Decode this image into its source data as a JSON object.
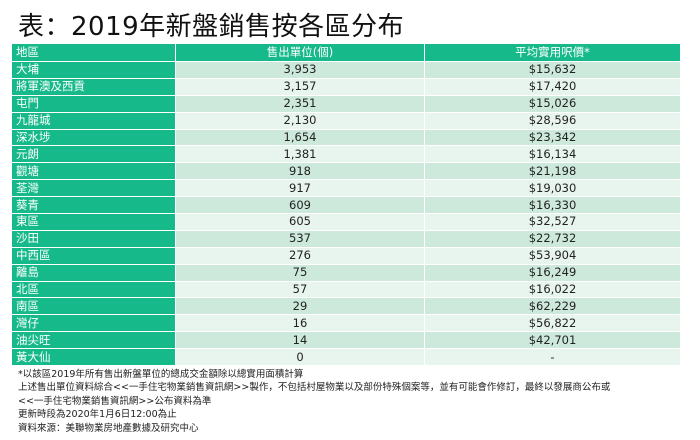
{
  "title": "表：2019年新盤銷售按各區分布",
  "table": {
    "headers": [
      "地區",
      "售出單位(個)",
      "平均實用呎價*"
    ],
    "rows": [
      [
        "大埔",
        "3,953",
        "$15,632"
      ],
      [
        "將軍澳及西貢",
        "3,157",
        "$17,420"
      ],
      [
        "屯門",
        "2,351",
        "$15,026"
      ],
      [
        "九龍城",
        "2,130",
        "$28,596"
      ],
      [
        "深水埗",
        "1,654",
        "$23,342"
      ],
      [
        "元朗",
        "1,381",
        "$16,134"
      ],
      [
        "觀塘",
        "918",
        "$21,198"
      ],
      [
        "荃灣",
        "917",
        "$19,030"
      ],
      [
        "葵青",
        "609",
        "$16,330"
      ],
      [
        "東區",
        "605",
        "$32,527"
      ],
      [
        "沙田",
        "537",
        "$22,732"
      ],
      [
        "中西區",
        "276",
        "$53,904"
      ],
      [
        "離島",
        "75",
        "$16,249"
      ],
      [
        "北區",
        "57",
        "$16,022"
      ],
      [
        "南區",
        "29",
        "$62,229"
      ],
      [
        "灣仔",
        "16",
        "$56,822"
      ],
      [
        "油尖旺",
        "14",
        "$42,701"
      ],
      [
        "黃大仙",
        "0",
        "-"
      ]
    ]
  },
  "notes": [
    "*以該區2019年所有售出新盤單位的總成交金額除以總實用面積計算",
    "上述售出單位資料綜合<<一手住宅物業銷售資訊網>>製作，不包括村屋物業以及部份特殊個案等，並有可能會作修訂，最終以發展商公布或",
    "<<一手住宅物業銷售資訊網>>公布資料為準",
    "更新時段為2020年1月6日12:00為止",
    "資料來源：美聯物業房地產數據及研究中心"
  ],
  "colors": {
    "header": "#16b98a",
    "row_a": "#cde9dc",
    "row_b": "#e8f5ee"
  }
}
